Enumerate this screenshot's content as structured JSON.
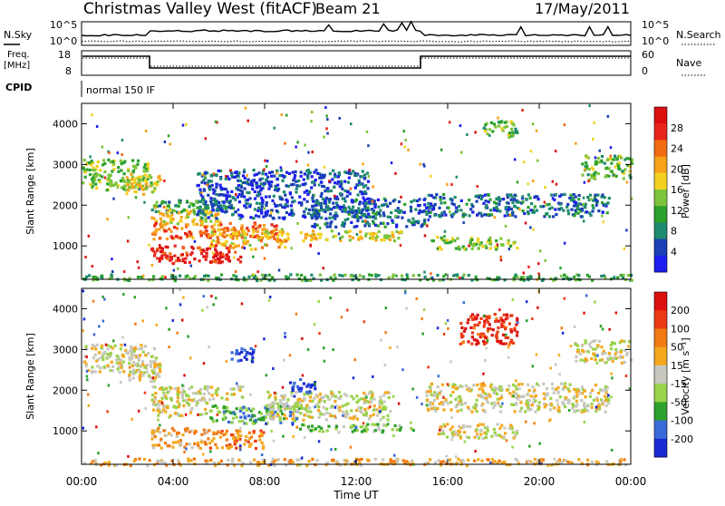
{
  "header": {
    "title": "Christmas Valley West (fitACF)",
    "beam": "Beam 21",
    "date": "17/May/2011"
  },
  "sky_panel": {
    "left_label": "N.Sky",
    "right_label": "N.Search",
    "left_ticks": [
      "10^5",
      "10^0"
    ],
    "right_ticks": [
      "10^5",
      "10^0"
    ]
  },
  "freq_panel": {
    "left_label_line1": "Freq.",
    "left_label_line2": "[MHz]",
    "left_ticks": [
      "18",
      "8"
    ],
    "right_label": "Nave",
    "right_ticks": [
      "60",
      "0"
    ]
  },
  "cpid_panel": {
    "label": "CPID",
    "mode_text": "normal 150 IF"
  },
  "chart_data": [
    {
      "type": "heatmap",
      "panel": "power",
      "ylabel": "Slant Range [km]",
      "xlabel": "Time UT",
      "x_ticks": [
        "00:00",
        "04:00",
        "08:00",
        "12:00",
        "16:00",
        "20:00",
        "00:00"
      ],
      "y_ticks": [
        "1000",
        "2000",
        "3000",
        "4000"
      ],
      "xlim": [
        0,
        24
      ],
      "ylim": [
        180,
        4500
      ],
      "colorbar": {
        "label": "Power [dB]",
        "ticks": [
          "4",
          "8",
          "12",
          "16",
          "20",
          "24",
          "28"
        ],
        "colors": [
          "#1e1ef0",
          "#1b3fb6",
          "#1e8a6e",
          "#2ca12c",
          "#7dc43a",
          "#f2d21f",
          "#f7a21a",
          "#f26a12",
          "#e8251a",
          "#dc0f0f"
        ]
      },
      "bands": [
        {
          "t0": 0.0,
          "t1": 3.0,
          "r0": 2400,
          "r1": 3150,
          "level": 0.45
        },
        {
          "t0": 1.8,
          "t1": 3.4,
          "r0": 2300,
          "r1": 2800,
          "level": 0.55
        },
        {
          "t0": 3.0,
          "t1": 6.5,
          "r0": 1850,
          "r1": 2150,
          "level": 0.3
        },
        {
          "t0": 3.0,
          "t1": 6.0,
          "r0": 1550,
          "r1": 1900,
          "level": 0.55
        },
        {
          "t0": 3.0,
          "t1": 8.5,
          "r0": 1200,
          "r1": 1600,
          "level": 0.75
        },
        {
          "t0": 3.0,
          "t1": 7.0,
          "r0": 600,
          "r1": 1050,
          "level": 0.9
        },
        {
          "t0": 5.5,
          "t1": 9.0,
          "r0": 950,
          "r1": 1450,
          "level": 0.6
        },
        {
          "t0": 5.0,
          "t1": 12.5,
          "r0": 1700,
          "r1": 2900,
          "level": 0.15
        },
        {
          "t0": 9.5,
          "t1": 14.0,
          "r0": 1150,
          "r1": 1400,
          "level": 0.55
        },
        {
          "t0": 10.0,
          "t1": 15.0,
          "r0": 1500,
          "r1": 2200,
          "level": 0.2
        },
        {
          "t0": 15.2,
          "t1": 19.0,
          "r0": 950,
          "r1": 1250,
          "level": 0.45
        },
        {
          "t0": 15.0,
          "t1": 23.0,
          "r0": 1750,
          "r1": 2300,
          "level": 0.2
        },
        {
          "t0": 17.5,
          "t1": 19.0,
          "r0": 3700,
          "r1": 4100,
          "level": 0.4
        },
        {
          "t0": 21.8,
          "t1": 24.0,
          "r0": 2650,
          "r1": 3250,
          "level": 0.4
        },
        {
          "t0": 0.0,
          "t1": 24.0,
          "r0": 180,
          "r1": 330,
          "level": 0.35
        }
      ]
    },
    {
      "type": "heatmap",
      "panel": "velocity",
      "ylabel": "Slant Range [km]",
      "xlabel": "Time UT",
      "x_ticks": [
        "00:00",
        "04:00",
        "08:00",
        "12:00",
        "16:00",
        "20:00",
        "00:00"
      ],
      "y_ticks": [
        "1000",
        "2000",
        "3000",
        "4000"
      ],
      "xlim": [
        0,
        24
      ],
      "ylim": [
        180,
        4500
      ],
      "colorbar": {
        "label": "Velocity [m s⁻¹]",
        "ticks": [
          "200",
          "100",
          "50",
          "15",
          "-15",
          "-50",
          "-100",
          "-200"
        ],
        "colors": [
          "#1a2ad2",
          "#3a6ad8",
          "#2ca12c",
          "#9ad24a",
          "#c8c8c0",
          "#f4a81e",
          "#f27a12",
          "#ec3a14",
          "#dc0f0f"
        ]
      },
      "bands": [
        {
          "t0": 0.0,
          "t1": 3.2,
          "r0": 2450,
          "r1": 3150,
          "level": 0.5
        },
        {
          "t0": 2.0,
          "t1": 3.5,
          "r0": 2250,
          "r1": 2750,
          "level": 0.5
        },
        {
          "t0": 3.0,
          "t1": 7.0,
          "r0": 1800,
          "r1": 2150,
          "level": 0.5
        },
        {
          "t0": 3.0,
          "t1": 5.5,
          "r0": 1400,
          "r1": 1800,
          "level": 0.5
        },
        {
          "t0": 5.5,
          "t1": 9.5,
          "r0": 1200,
          "r1": 1650,
          "level": 0.3
        },
        {
          "t0": 3.0,
          "t1": 5.5,
          "r0": 600,
          "r1": 1100,
          "level": 0.62
        },
        {
          "t0": 5.5,
          "t1": 8.0,
          "r0": 600,
          "r1": 1050,
          "level": 0.7
        },
        {
          "t0": 9.5,
          "t1": 14.5,
          "r0": 1000,
          "r1": 1200,
          "level": 0.35
        },
        {
          "t0": 8.0,
          "t1": 13.5,
          "r0": 1300,
          "r1": 2000,
          "level": 0.5
        },
        {
          "t0": 6.5,
          "t1": 7.5,
          "r0": 2700,
          "r1": 3100,
          "level": 0.1
        },
        {
          "t0": 9.0,
          "t1": 10.2,
          "r0": 1950,
          "r1": 2300,
          "level": 0.1
        },
        {
          "t0": 15.0,
          "t1": 23.0,
          "r0": 1500,
          "r1": 2200,
          "level": 0.5
        },
        {
          "t0": 16.5,
          "t1": 19.0,
          "r0": 3150,
          "r1": 3900,
          "level": 0.9
        },
        {
          "t0": 15.5,
          "t1": 19.0,
          "r0": 850,
          "r1": 1200,
          "level": 0.5
        },
        {
          "t0": 21.5,
          "t1": 24.0,
          "r0": 2700,
          "r1": 3250,
          "level": 0.5
        },
        {
          "t0": 0.0,
          "t1": 24.0,
          "r0": 180,
          "r1": 350,
          "level": 0.62
        }
      ]
    }
  ]
}
